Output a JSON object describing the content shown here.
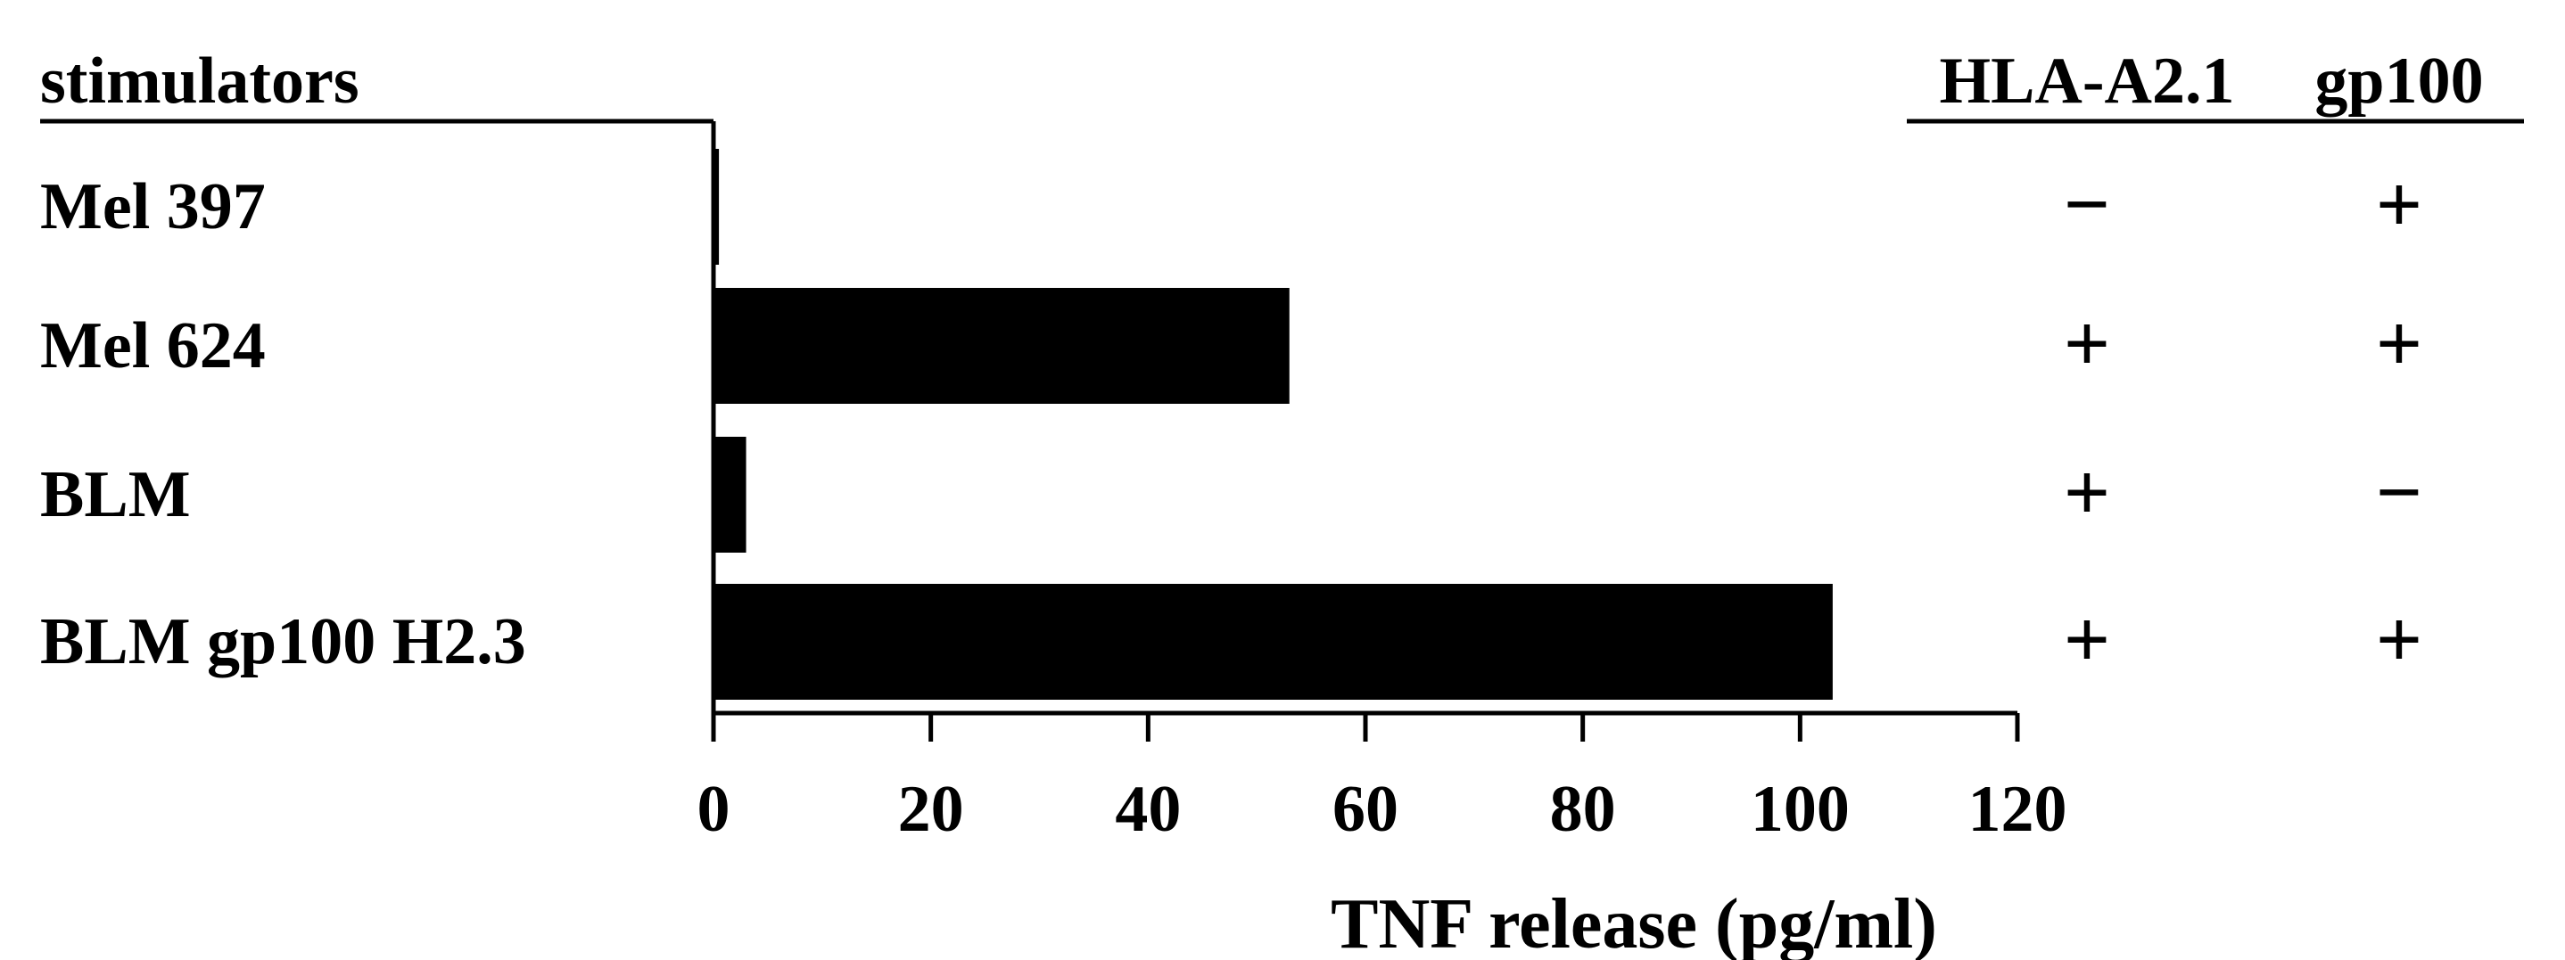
{
  "chart_data": {
    "type": "bar",
    "orientation": "horizontal",
    "row_header": "stimulators",
    "categories": [
      "Mel 397",
      "Mel 624",
      "BLM",
      "BLM gp100 H2.3"
    ],
    "values": [
      0.5,
      53,
      3,
      103
    ],
    "xlabel": "TNF release (pg/ml)",
    "xlim": [
      0,
      120
    ],
    "xticks": [
      0,
      20,
      40,
      60,
      80,
      100,
      120
    ],
    "grid": false,
    "bar_color": "#000000",
    "side_table": {
      "columns": [
        "HLA-A2.1",
        "gp100"
      ],
      "rows": [
        [
          "−",
          "+"
        ],
        [
          "+",
          "+"
        ],
        [
          "+",
          "−"
        ],
        [
          "+",
          "+"
        ]
      ]
    }
  }
}
